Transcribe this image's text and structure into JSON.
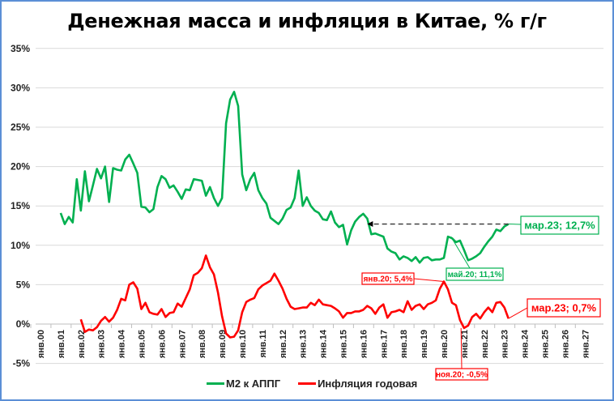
{
  "title": "Денежная масса и инфляция в Китае, % г/г",
  "legend": [
    {
      "label": "M2 к АППГ",
      "color": "#00b050"
    },
    {
      "label": "Инфляция годовая",
      "color": "#ff0000"
    }
  ],
  "annotations": {
    "m2_last": "мар.23; 12,7%",
    "m2_may20": "май.20; 11,1%",
    "cpi_jan20": "янв.20; 5,4%",
    "cpi_nov20": "ноя.20; -0,5%",
    "cpi_last": "мар.23; 0,7%"
  },
  "chart_data": {
    "type": "line",
    "title": "Денежная масса и инфляция в Китае, % г/г",
    "xlabel": "",
    "ylabel": "",
    "ylim": [
      -5,
      35
    ],
    "yticks": [
      "-5%",
      "0%",
      "5%",
      "10%",
      "15%",
      "20%",
      "25%",
      "30%",
      "35%"
    ],
    "xticks": [
      "янв.00",
      "янв.01",
      "янв.02",
      "янв.03",
      "янв.04",
      "янв.05",
      "янв.06",
      "янв.07",
      "янв.08",
      "янв.09",
      "янв.10",
      "янв.11",
      "янв.12",
      "янв.13",
      "янв.14",
      "янв.15",
      "янв.16",
      "янв.17",
      "янв.18",
      "янв.19",
      "янв.20",
      "янв.21",
      "янв.22",
      "янв.23",
      "янв.24",
      "янв.25",
      "янв.26",
      "янв.27"
    ],
    "grid": true,
    "legend_position": "bottom",
    "series": [
      {
        "name": "M2 к АППГ",
        "color": "#00b050",
        "x": [
          2001.0,
          2001.2,
          2001.4,
          2001.6,
          2001.8,
          2002.0,
          2002.2,
          2002.4,
          2002.6,
          2002.8,
          2003.0,
          2003.2,
          2003.4,
          2003.6,
          2003.8,
          2004.0,
          2004.2,
          2004.4,
          2004.6,
          2004.8,
          2005.0,
          2005.2,
          2005.4,
          2005.6,
          2005.8,
          2006.0,
          2006.2,
          2006.4,
          2006.6,
          2006.8,
          2007.0,
          2007.2,
          2007.4,
          2007.6,
          2007.8,
          2008.0,
          2008.2,
          2008.4,
          2008.6,
          2008.8,
          2009.0,
          2009.2,
          2009.4,
          2009.6,
          2009.8,
          2010.0,
          2010.2,
          2010.4,
          2010.6,
          2010.8,
          2011.0,
          2011.2,
          2011.4,
          2011.6,
          2011.8,
          2012.0,
          2012.2,
          2012.4,
          2012.6,
          2012.8,
          2013.0,
          2013.2,
          2013.4,
          2013.6,
          2013.8,
          2014.0,
          2014.2,
          2014.4,
          2014.6,
          2014.8,
          2015.0,
          2015.2,
          2015.4,
          2015.6,
          2015.8,
          2016.0,
          2016.2,
          2016.4,
          2016.6,
          2016.8,
          2017.0,
          2017.2,
          2017.4,
          2017.6,
          2017.8,
          2018.0,
          2018.2,
          2018.4,
          2018.6,
          2018.8,
          2019.0,
          2019.2,
          2019.4,
          2019.6,
          2019.8,
          2020.0,
          2020.2,
          2020.4,
          2020.6,
          2020.8,
          2021.0,
          2021.2,
          2021.4,
          2021.6,
          2021.8,
          2022.0,
          2022.2,
          2022.4,
          2022.6,
          2022.8,
          2023.0,
          2023.2
        ],
        "values": [
          14.1,
          12.7,
          13.6,
          12.9,
          18.4,
          14.4,
          19.4,
          15.6,
          17.6,
          19.7,
          18.5,
          20.0,
          15.5,
          19.8,
          19.6,
          19.5,
          20.9,
          21.5,
          20.4,
          19.2,
          14.9,
          14.8,
          14.2,
          14.6,
          17.4,
          18.8,
          18.4,
          17.3,
          17.6,
          16.8,
          15.9,
          17.1,
          17.0,
          18.4,
          18.3,
          18.2,
          16.3,
          17.4,
          16.0,
          15.0,
          16.0,
          25.5,
          28.5,
          29.5,
          27.7,
          19.0,
          17.0,
          18.4,
          19.2,
          17.0,
          16.0,
          15.3,
          13.5,
          13.1,
          12.7,
          13.4,
          14.5,
          14.8,
          16.0,
          19.5,
          15.0,
          16.1,
          15.0,
          14.4,
          14.1,
          13.3,
          13.2,
          14.3,
          12.9,
          12.3,
          12.6,
          10.1,
          11.9,
          13.0,
          13.6,
          14.0,
          13.4,
          11.4,
          11.5,
          11.3,
          11.1,
          9.6,
          9.2,
          9.0,
          8.2,
          8.6,
          8.4,
          8.0,
          8.5,
          7.8,
          8.4,
          8.5,
          8.1,
          8.2,
          8.2,
          8.4,
          11.1,
          10.9,
          10.4,
          10.6,
          9.4,
          8.1,
          8.3,
          8.6,
          9.0,
          9.8,
          10.5,
          11.1,
          12.0,
          11.8,
          12.4,
          12.7
        ]
      },
      {
        "name": "Инфляция годовая",
        "color": "#ff0000",
        "x": [
          2002.0,
          2002.2,
          2002.4,
          2002.6,
          2002.8,
          2003.0,
          2003.2,
          2003.4,
          2003.6,
          2003.8,
          2004.0,
          2004.2,
          2004.4,
          2004.6,
          2004.8,
          2005.0,
          2005.2,
          2005.4,
          2005.6,
          2005.8,
          2006.0,
          2006.2,
          2006.4,
          2006.6,
          2006.8,
          2007.0,
          2007.2,
          2007.4,
          2007.6,
          2007.8,
          2008.0,
          2008.2,
          2008.4,
          2008.6,
          2008.8,
          2009.0,
          2009.2,
          2009.4,
          2009.6,
          2009.8,
          2010.0,
          2010.2,
          2010.4,
          2010.6,
          2010.8,
          2011.0,
          2011.2,
          2011.4,
          2011.6,
          2011.8,
          2012.0,
          2012.2,
          2012.4,
          2012.6,
          2012.8,
          2013.0,
          2013.2,
          2013.4,
          2013.6,
          2013.8,
          2014.0,
          2014.2,
          2014.4,
          2014.6,
          2014.8,
          2015.0,
          2015.2,
          2015.4,
          2015.6,
          2015.8,
          2016.0,
          2016.2,
          2016.4,
          2016.6,
          2016.8,
          2017.0,
          2017.2,
          2017.4,
          2017.6,
          2017.8,
          2018.0,
          2018.2,
          2018.4,
          2018.6,
          2018.8,
          2019.0,
          2019.2,
          2019.4,
          2019.6,
          2019.8,
          2020.0,
          2020.2,
          2020.4,
          2020.6,
          2020.8,
          2021.0,
          2021.2,
          2021.4,
          2021.6,
          2021.8,
          2022.0,
          2022.2,
          2022.4,
          2022.6,
          2022.8,
          2023.0,
          2023.2
        ],
        "values": [
          0.6,
          -1.0,
          -0.7,
          -0.8,
          -0.4,
          0.4,
          0.9,
          0.3,
          0.8,
          1.8,
          3.2,
          3.0,
          5.0,
          5.3,
          4.5,
          1.9,
          2.7,
          1.5,
          1.3,
          1.2,
          1.9,
          0.9,
          1.4,
          1.5,
          2.6,
          2.2,
          3.3,
          4.4,
          6.2,
          6.5,
          7.1,
          8.7,
          7.2,
          6.3,
          4.0,
          1.0,
          -1.2,
          -1.7,
          -1.6,
          -0.8,
          1.5,
          2.8,
          3.1,
          3.3,
          4.4,
          4.9,
          5.2,
          5.5,
          6.4,
          5.5,
          4.5,
          3.2,
          2.2,
          1.9,
          2.0,
          2.1,
          2.1,
          2.7,
          2.4,
          3.1,
          2.5,
          2.4,
          2.3,
          2.0,
          1.6,
          0.8,
          1.4,
          1.4,
          1.6,
          1.6,
          1.8,
          2.3,
          2.0,
          1.3,
          2.1,
          2.5,
          0.8,
          1.5,
          1.6,
          1.8,
          1.5,
          2.9,
          1.8,
          2.3,
          2.5,
          1.9,
          2.5,
          2.7,
          3.0,
          4.5,
          5.4,
          4.4,
          2.7,
          2.4,
          0.5,
          -0.5,
          -0.2,
          0.9,
          1.3,
          0.7,
          1.5,
          2.1,
          1.5,
          2.7,
          2.8,
          2.1,
          0.7
        ]
      }
    ]
  }
}
